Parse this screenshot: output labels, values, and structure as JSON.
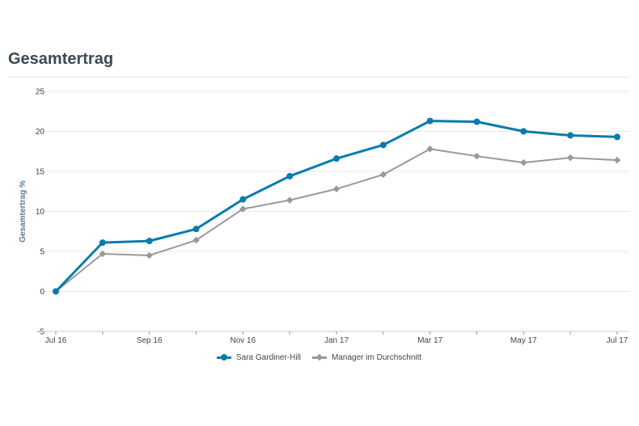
{
  "chart_data": {
    "type": "line",
    "title": "Gesamtertrag",
    "ylabel": "Gesamtertrag %",
    "xlabel": "",
    "ylim": [
      -5,
      25
    ],
    "yticks": [
      -5,
      0,
      5,
      10,
      15,
      20,
      25
    ],
    "x": [
      "Jul 16",
      "Aug 16",
      "Sep 16",
      "Oct 16",
      "Nov 16",
      "Dec 16",
      "Jan 17",
      "Feb 17",
      "Mar 17",
      "Apr 17",
      "May 17",
      "Jun 17",
      "Jul 17"
    ],
    "xtick_labels": [
      "Jul 16",
      "",
      "Sep 16",
      "",
      "Nov 16",
      "",
      "Jan 17",
      "",
      "Mar 17",
      "",
      "May 17",
      "",
      "Jul 17"
    ],
    "grid": true,
    "legend_position": "bottom",
    "series": [
      {
        "name": "Sara Gardiner-Hill",
        "color": "#0a7bad",
        "marker": "circle",
        "values": [
          0,
          6.1,
          6.3,
          7.8,
          11.5,
          14.4,
          16.6,
          18.3,
          21.3,
          21.2,
          20.0,
          19.5,
          19.3
        ]
      },
      {
        "name": "Manager im Durchschnitt",
        "color": "#999999",
        "marker": "diamond",
        "values": [
          0,
          4.7,
          4.5,
          6.4,
          10.3,
          11.4,
          12.8,
          14.6,
          17.8,
          16.9,
          16.1,
          16.7,
          16.4
        ]
      }
    ]
  }
}
